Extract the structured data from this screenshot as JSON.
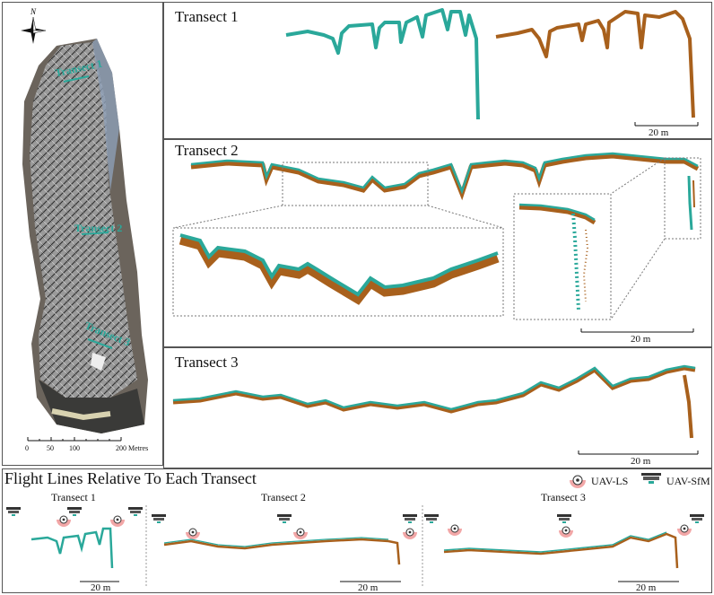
{
  "colors": {
    "uav_ls": "#2aa89a",
    "uav_sfm": "#a8601c",
    "frame": "#555555",
    "callout": "#777777"
  },
  "map": {
    "north_label": "N",
    "transect_labels": [
      "Transect 1",
      "Transect 2",
      "Transect 3"
    ],
    "scale_ticks": [
      "0",
      "50",
      "100",
      "200 Metres"
    ]
  },
  "panels": {
    "t1": {
      "title": "Transect 1",
      "scale": "20 m"
    },
    "t2": {
      "title": "Transect 2",
      "scale": "20 m"
    },
    "t3": {
      "title": "Transect 3",
      "scale": "20 m"
    }
  },
  "flight": {
    "title": "Flight Lines Relative To Each Transect",
    "legend": {
      "ls": "UAV-LS",
      "sfm": "UAV-SfM"
    },
    "subs": [
      {
        "title": "Transect 1",
        "scale": "20 m"
      },
      {
        "title": "Transect 2",
        "scale": "20 m"
      },
      {
        "title": "Transect 3",
        "scale": "20 m"
      }
    ]
  },
  "icons": [
    "compass-rose-icon",
    "laser-scanner-icon",
    "camera-sfm-icon"
  ]
}
